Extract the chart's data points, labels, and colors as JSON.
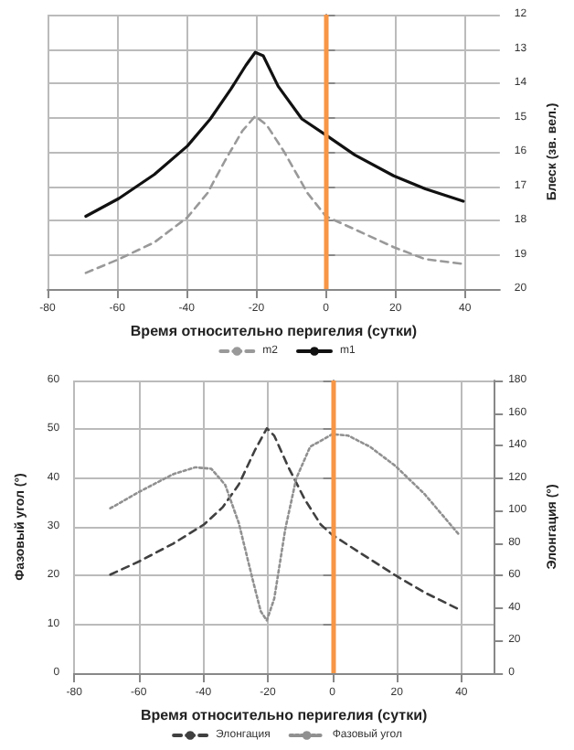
{
  "chart_data": [
    {
      "type": "line",
      "xlabel": "Время относительно перигелия (сутки)",
      "y2label": "Блеск (зв. вел.)",
      "xlim": [
        -80,
        50
      ],
      "xticks": [
        -80,
        -60,
        -40,
        -20,
        0,
        20,
        40
      ],
      "y2lim": [
        20,
        12
      ],
      "y2ticks": [
        12,
        13,
        14,
        15,
        16,
        17,
        18,
        19,
        20
      ],
      "grid": true,
      "legend": "bottom",
      "marker": "none",
      "ref_lines": [
        {
          "axis": "x",
          "value": 0,
          "color": "#f79646"
        }
      ],
      "series": [
        {
          "name": "m2",
          "color": "#999999",
          "line_style": "dashed",
          "axis": "y2",
          "x": [
            -69,
            -59.5,
            -49.3,
            -39.8,
            -34,
            -29,
            -24,
            -20.3,
            -17,
            -12,
            -5.3,
            0,
            8.3,
            19.5,
            28.6,
            39.5
          ],
          "values": [
            19.53,
            19.13,
            18.64,
            17.91,
            17.2,
            16.26,
            15.39,
            14.96,
            15.22,
            16.0,
            17.2,
            17.88,
            18.26,
            18.78,
            19.13,
            19.27
          ]
        },
        {
          "name": "m1",
          "color": "#111111",
          "line_style": "solid",
          "axis": "y2",
          "x": [
            -69,
            -59.5,
            -49.3,
            -39.8,
            -33.2,
            -27.3,
            -23,
            -20.3,
            -18,
            -13.7,
            -6.9,
            0,
            8.3,
            19.5,
            28.6,
            39.5
          ],
          "values": [
            17.88,
            17.36,
            16.66,
            15.83,
            15.04,
            14.17,
            13.48,
            13.1,
            13.2,
            14.09,
            15.04,
            15.51,
            16.09,
            16.7,
            17.08,
            17.44
          ]
        }
      ]
    },
    {
      "type": "line",
      "xlabel": "Время относительно перигелия (сутки)",
      "ylabel": "Фазовый угол (°)",
      "y2label": "Элонгация (°)",
      "xlim": [
        -80,
        50
      ],
      "xticks": [
        -80,
        -60,
        -40,
        -20,
        0,
        20,
        40
      ],
      "ylim": [
        0,
        60
      ],
      "yticks": [
        0,
        10,
        20,
        30,
        40,
        50,
        60
      ],
      "y2lim": [
        0,
        180
      ],
      "y2ticks": [
        0,
        20,
        40,
        60,
        80,
        100,
        120,
        140,
        160,
        180
      ],
      "grid": true,
      "legend": "bottom",
      "marker": "none",
      "ref_lines": [
        {
          "axis": "x",
          "value": 0,
          "color": "#f79646"
        }
      ],
      "series": [
        {
          "name": "Элонгация",
          "color": "#404040",
          "line_style": "dashed",
          "axis": "y2",
          "x": [
            -68.8,
            -59.5,
            -49.3,
            -39.8,
            -34,
            -29,
            -23.9,
            -20.3,
            -18,
            -13.7,
            -8.6,
            -3.6,
            0,
            8.3,
            19.5,
            28.6,
            39.5
          ],
          "values": [
            60.6,
            69.1,
            79.7,
            91.4,
            102,
            116,
            137.5,
            150.6,
            146,
            127,
            107,
            91.4,
            85,
            74.4,
            60.2,
            49.6,
            39
          ]
        },
        {
          "name": "Фазовый угол",
          "color": "#909090",
          "line_style": "dotted",
          "x": [
            -68.8,
            -59.5,
            -49.3,
            -42.5,
            -37.5,
            -33.2,
            -29,
            -24.7,
            -22.2,
            -20.3,
            -18,
            -14.6,
            -11.2,
            -6.9,
            0,
            4.9,
            11.7,
            19.5,
            28.6,
            39.5
          ],
          "values": [
            33.8,
            37.3,
            40.8,
            42.2,
            41.9,
            38.6,
            30.8,
            19.2,
            12.7,
            10.8,
            15.3,
            29.5,
            39.9,
            46.4,
            49,
            48.7,
            46.4,
            42.5,
            36.7,
            28.2
          ]
        }
      ]
    }
  ]
}
